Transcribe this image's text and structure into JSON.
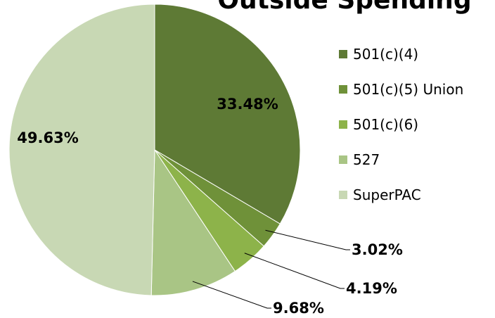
{
  "chart_data": {
    "type": "pie",
    "title": "Outside Spending",
    "categories": [
      "501(c)(4)",
      "501(c)(5) Union",
      "501(c)(6)",
      "527",
      "SuperPAC"
    ],
    "values": [
      33.48,
      3.02,
      4.19,
      9.68,
      49.63
    ],
    "value_labels": [
      "33.48%",
      "3.02%",
      "4.19%",
      "9.68%",
      "49.63%"
    ],
    "colors": [
      "#5e7a35",
      "#6f9139",
      "#8db34a",
      "#a9c585",
      "#c8d8b4"
    ],
    "legend": "right"
  }
}
